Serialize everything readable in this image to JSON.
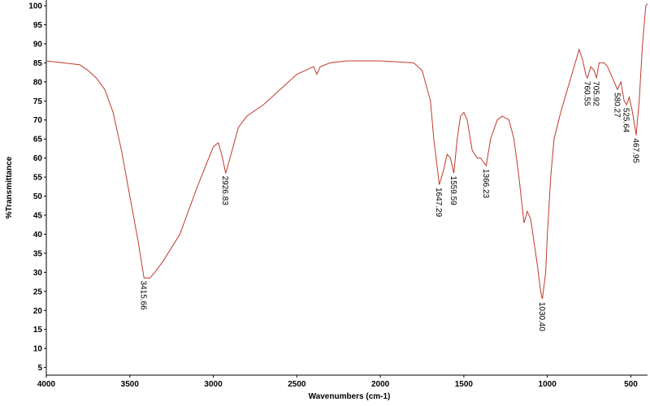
{
  "chart_data": {
    "type": "line",
    "xlabel": "Wavenumbers (cm-1)",
    "ylabel": "%Transmittance",
    "color": "#c0392b",
    "x": [
      4000,
      3900,
      3800,
      3750,
      3700,
      3650,
      3600,
      3550,
      3500,
      3450,
      3415,
      3380,
      3350,
      3300,
      3200,
      3100,
      3000,
      2970,
      2950,
      2926,
      2900,
      2850,
      2800,
      2700,
      2600,
      2500,
      2400,
      2380,
      2360,
      2300,
      2200,
      2000,
      1800,
      1750,
      1700,
      1680,
      1647,
      1620,
      1600,
      1580,
      1560,
      1540,
      1520,
      1500,
      1480,
      1450,
      1420,
      1400,
      1366,
      1340,
      1300,
      1270,
      1230,
      1200,
      1170,
      1140,
      1120,
      1100,
      1080,
      1060,
      1040,
      1030,
      1010,
      1000,
      980,
      960,
      920,
      880,
      840,
      810,
      790,
      770,
      760,
      740,
      720,
      706,
      690,
      660,
      640,
      600,
      580,
      560,
      540,
      525,
      510,
      490,
      468,
      450,
      430,
      410,
      400
    ],
    "values": [
      85.5,
      85,
      84.5,
      83,
      81,
      78,
      72,
      62,
      50,
      38,
      28.5,
      28.5,
      30,
      33,
      40,
      52,
      63,
      64,
      61,
      56,
      60,
      68,
      71,
      74,
      78,
      82,
      84,
      82,
      84,
      85,
      85.5,
      85.5,
      85,
      83,
      75,
      65,
      53,
      57,
      61,
      60,
      56,
      65,
      71,
      72,
      70,
      62,
      60,
      60,
      58,
      65,
      70,
      71,
      70,
      65,
      55,
      43,
      46,
      44,
      38,
      32,
      25,
      23,
      30,
      40,
      55,
      65,
      72,
      78,
      84,
      88.5,
      86,
      82,
      81,
      84,
      83,
      81,
      85,
      85,
      84,
      80,
      78,
      80,
      75,
      74,
      76,
      72,
      66,
      75,
      90,
      100,
      100.5
    ],
    "peaks": [
      {
        "value": 3415.66,
        "label": "3415.66"
      },
      {
        "value": 2926.83,
        "label": "2926.83"
      },
      {
        "value": 1647.29,
        "label": "1647.29"
      },
      {
        "value": 1559.59,
        "label": "1559.59"
      },
      {
        "value": 1366.23,
        "label": "1366.23"
      },
      {
        "value": 1030.4,
        "label": "1030.40"
      },
      {
        "value": 760.55,
        "label": "760.55"
      },
      {
        "value": 705.92,
        "label": "705.92"
      },
      {
        "value": 580.27,
        "label": "580.27"
      },
      {
        "value": 525.64,
        "label": "525.64"
      },
      {
        "value": 467.95,
        "label": "467.95"
      }
    ],
    "xlim": [
      4000,
      400
    ],
    "xticks": [
      4000,
      3500,
      3000,
      2500,
      2000,
      1500,
      1000,
      500
    ],
    "ylim": [
      3,
      101.5
    ],
    "yticks": [
      5,
      10,
      15,
      20,
      25,
      30,
      35,
      40,
      45,
      50,
      55,
      60,
      65,
      70,
      75,
      80,
      85,
      90,
      95,
      100
    ],
    "grid": false
  }
}
